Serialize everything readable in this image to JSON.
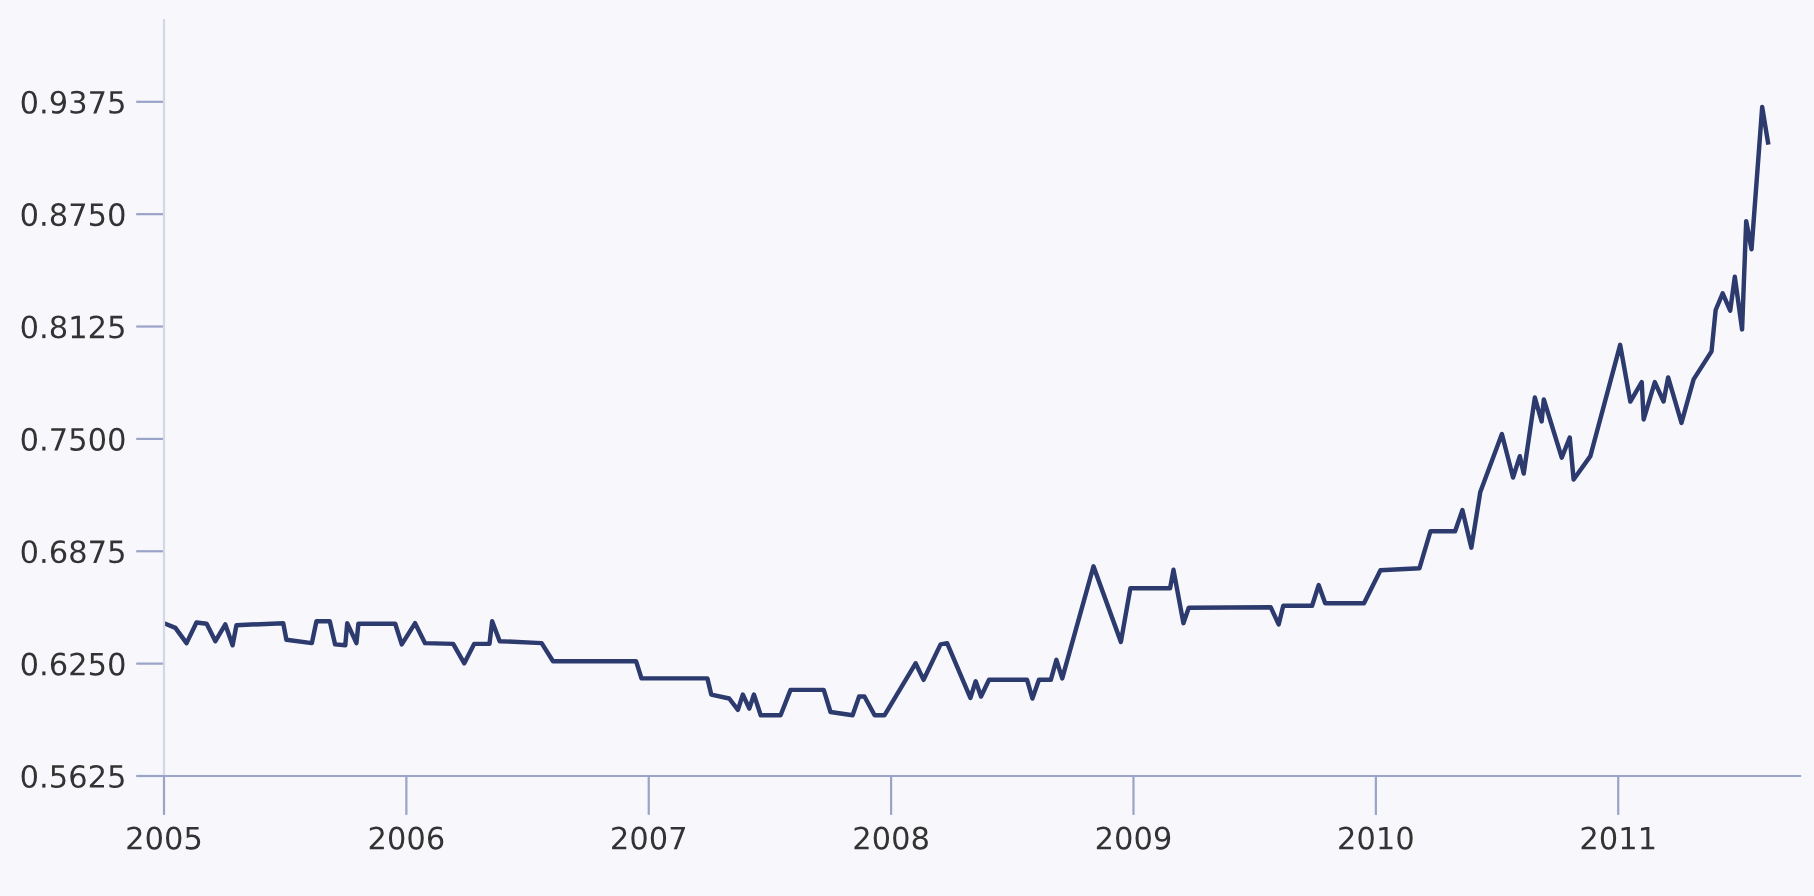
{
  "chart_data": {
    "type": "line",
    "color": "#2c3a6e",
    "x": [
      2005.0,
      2005.047,
      2005.093,
      2005.134,
      2005.176,
      2005.212,
      2005.253,
      2005.283,
      2005.299,
      2005.492,
      2005.505,
      2005.61,
      2005.629,
      2005.684,
      2005.706,
      2005.748,
      2005.756,
      2005.794,
      2005.802,
      2005.954,
      2005.981,
      2006.036,
      2006.077,
      2006.193,
      2006.239,
      2006.28,
      2006.343,
      2006.354,
      2006.385,
      2006.558,
      2006.605,
      2006.948,
      2006.97,
      2007.242,
      2007.258,
      2007.332,
      2007.368,
      2007.388,
      2007.415,
      2007.434,
      2007.462,
      2007.544,
      2007.585,
      2007.722,
      2007.75,
      2007.841,
      2007.868,
      2007.89,
      2007.932,
      2007.973,
      2008.101,
      2008.134,
      2008.204,
      2008.231,
      2008.327,
      2008.349,
      2008.371,
      2008.404,
      2008.561,
      2008.583,
      2008.61,
      2008.659,
      2008.682,
      2008.706,
      2008.835,
      2008.948,
      2008.987,
      2009.151,
      2009.165,
      2009.206,
      2009.228,
      2009.566,
      2009.599,
      2009.618,
      2009.737,
      2009.764,
      2009.791,
      2009.951,
      2010.019,
      2010.18,
      2010.225,
      2010.327,
      2010.357,
      2010.394,
      2010.431,
      2010.52,
      2010.566,
      2010.594,
      2010.61,
      2010.656,
      2010.684,
      2010.693,
      2010.767,
      2010.8,
      2010.816,
      2010.885,
      2011.008,
      2011.05,
      2011.097,
      2011.105,
      2011.151,
      2011.187,
      2011.206,
      2011.261,
      2011.311,
      2011.385,
      2011.402,
      2011.431,
      2011.462,
      2011.481,
      2011.511,
      2011.528,
      2011.55,
      2011.594,
      2011.618
    ],
    "values": [
      0.6475,
      0.6449,
      0.6364,
      0.6479,
      0.6472,
      0.6375,
      0.6468,
      0.6352,
      0.6464,
      0.6475,
      0.6383,
      0.6364,
      0.6486,
      0.6486,
      0.6357,
      0.6352,
      0.6475,
      0.6364,
      0.6472,
      0.6472,
      0.6357,
      0.6475,
      0.6364,
      0.636,
      0.6252,
      0.636,
      0.636,
      0.6486,
      0.6375,
      0.6364,
      0.6263,
      0.6263,
      0.6168,
      0.6168,
      0.6078,
      0.6056,
      0.5993,
      0.6078,
      0.6,
      0.6078,
      0.5963,
      0.5963,
      0.6104,
      0.6104,
      0.5981,
      0.5963,
      0.6067,
      0.6067,
      0.5963,
      0.5963,
      0.6252,
      0.616,
      0.6357,
      0.6364,
      0.6059,
      0.6152,
      0.6067,
      0.616,
      0.616,
      0.6056,
      0.616,
      0.616,
      0.6271,
      0.6168,
      0.6791,
      0.6371,
      0.6669,
      0.6669,
      0.6772,
      0.6475,
      0.6561,
      0.6564,
      0.6468,
      0.6572,
      0.6572,
      0.6687,
      0.6586,
      0.6586,
      0.6769,
      0.6781,
      0.6986,
      0.6986,
      0.7104,
      0.6895,
      0.7205,
      0.7527,
      0.7285,
      0.7404,
      0.7307,
      0.773,
      0.7597,
      0.7719,
      0.7396,
      0.7508,
      0.7274,
      0.7404,
      0.8023,
      0.7708,
      0.7816,
      0.7608,
      0.7816,
      0.7708,
      0.7842,
      0.7589,
      0.7831,
      0.7987,
      0.8217,
      0.831,
      0.8213,
      0.8402,
      0.8109,
      0.8711,
      0.8555,
      0.9346,
      0.9149
    ],
    "xlim": [
      2005.0,
      2011.75
    ],
    "ylim": [
      0.5625,
      0.983
    ],
    "xticks": [
      2005,
      2006,
      2007,
      2008,
      2009,
      2010,
      2011
    ],
    "yticks": [
      0.5625,
      {
        "value": 0.625,
        "label": "0.6250"
      },
      0.6875,
      {
        "value": 0.75,
        "label": "0.7500"
      },
      0.8125,
      {
        "value": 0.875,
        "label": "0.8750"
      },
      0.9375
    ],
    "grid": false,
    "legend": false,
    "marker": "none",
    "line_style": "solid"
  }
}
